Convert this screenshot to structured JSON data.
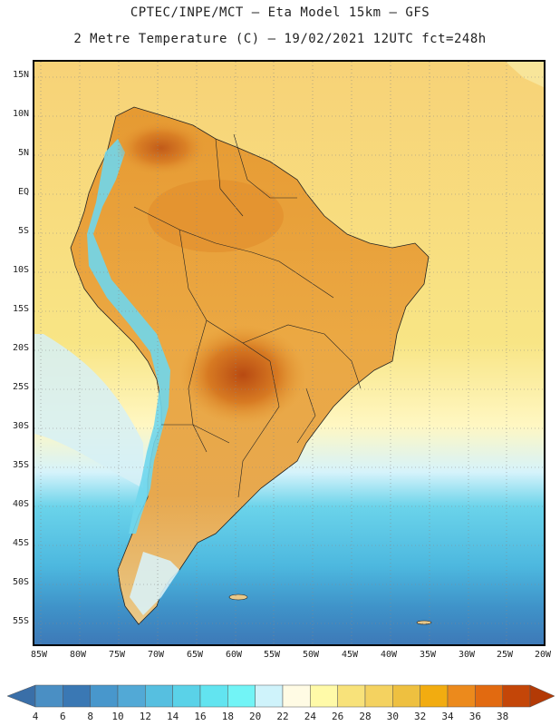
{
  "header": {
    "line1": "CPTEC/INPE/MCT –  Eta Model 15km – GFS",
    "line2": "2 Metre Temperature (C) – 19/02/2021 12UTC fct=248h"
  },
  "map": {
    "region": "South America",
    "lat_labels": [
      "15N",
      "10N",
      "5N",
      "EQ",
      "5S",
      "10S",
      "15S",
      "20S",
      "25S",
      "30S",
      "35S",
      "40S",
      "45S",
      "50S",
      "55S"
    ],
    "lon_labels": [
      "85W",
      "80W",
      "75W",
      "70W",
      "65W",
      "60W",
      "55W",
      "50W",
      "45W",
      "40W",
      "35W",
      "30W",
      "25W",
      "20W"
    ],
    "gridlines": true,
    "ocean_gradient_note": "warm tropical ocean (yellow) to cold southern ocean (blue)"
  },
  "colorbar": {
    "labels": [
      "4",
      "6",
      "8",
      "10",
      "12",
      "14",
      "16",
      "18",
      "20",
      "22",
      "24",
      "26",
      "28",
      "30",
      "32",
      "34",
      "36",
      "38"
    ],
    "colors": [
      "#4a8fc4",
      "#3a78b4",
      "#4897cc",
      "#52a9d6",
      "#56bfe0",
      "#5ad2e8",
      "#62e4f0",
      "#72f4f6",
      "#cff3fb",
      "#fffbe4",
      "#fffaa8",
      "#f8e27a",
      "#f4d260",
      "#eec040",
      "#f2ac10",
      "#ec8a1c",
      "#e26a10",
      "#c44608"
    ],
    "left_arrow_color": "#3a6fa8",
    "right_arrow_color": "#b33a06"
  }
}
